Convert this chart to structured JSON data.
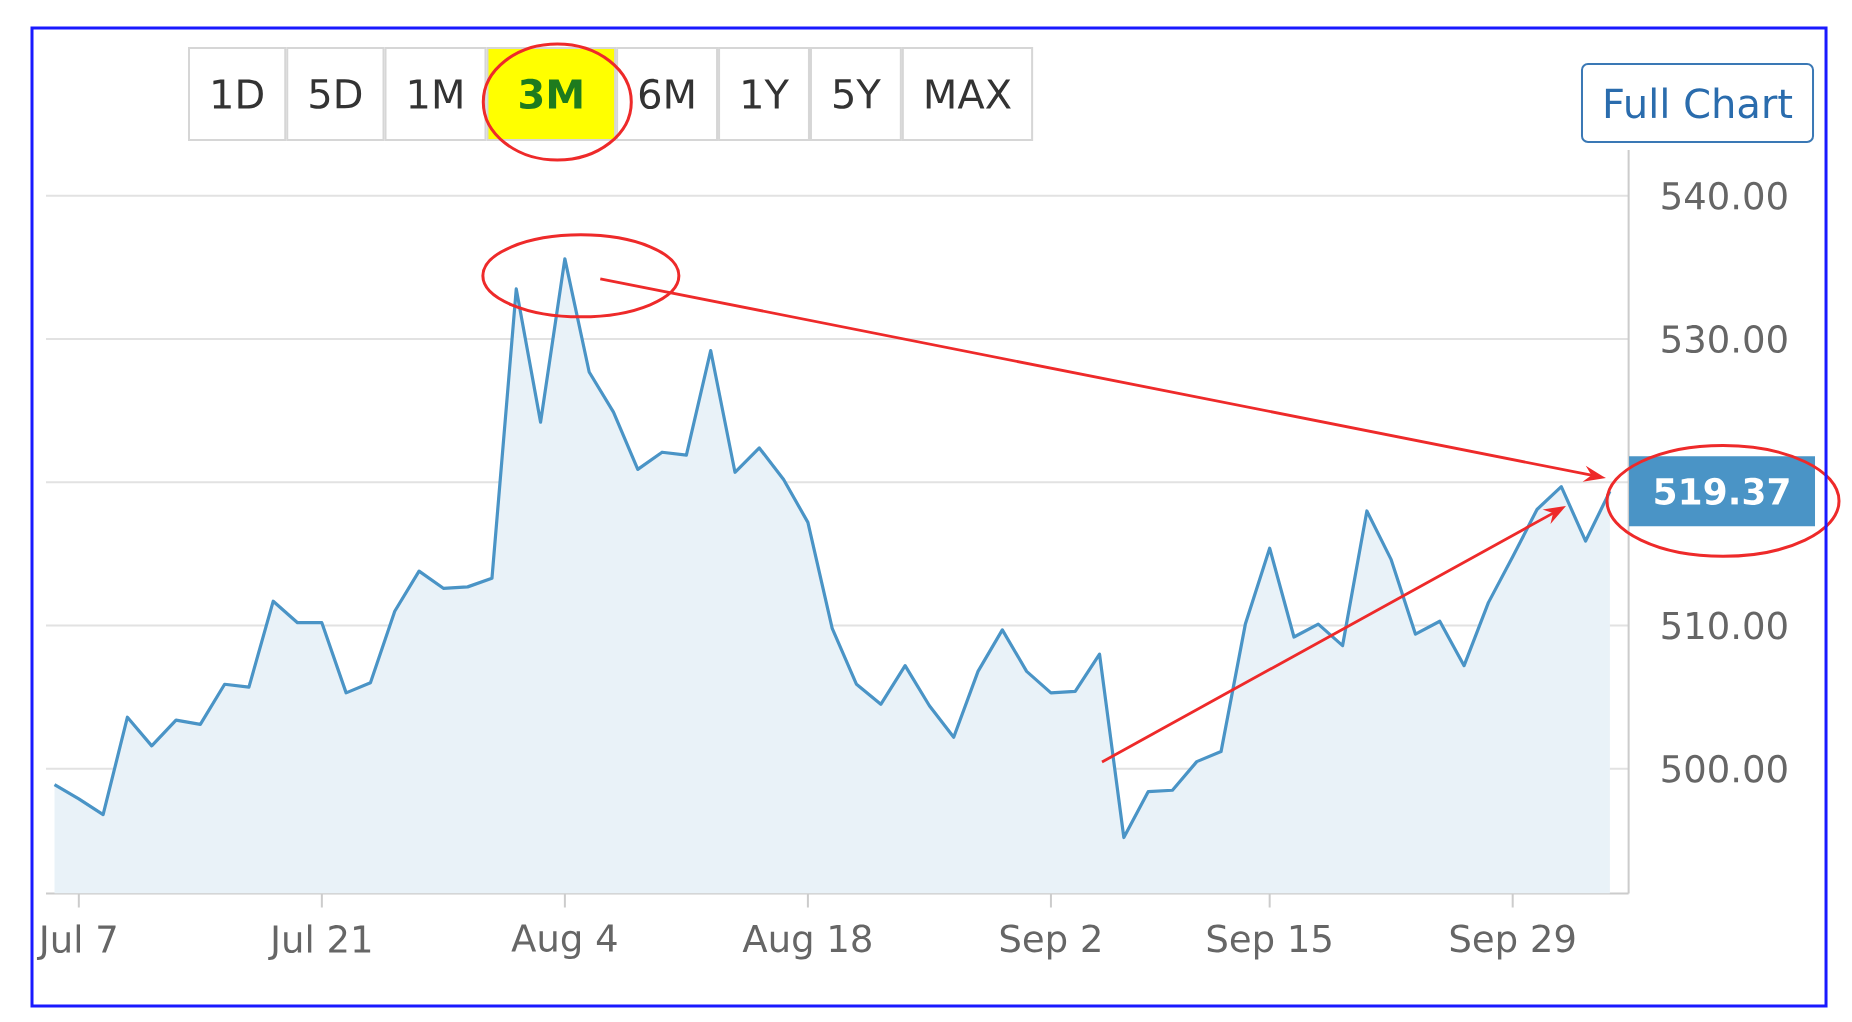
{
  "chart_data": {
    "type": "area",
    "categories": [
      null,
      "Jul 7",
      null,
      null,
      null,
      null,
      null,
      null,
      null,
      null,
      null,
      "Jul 21",
      null,
      null,
      null,
      null,
      null,
      null,
      null,
      null,
      null,
      "Aug 4",
      null,
      null,
      null,
      null,
      null,
      null,
      null,
      null,
      null,
      "Aug 18",
      null,
      null,
      null,
      null,
      null,
      null,
      null,
      null,
      null,
      "Sep 2",
      null,
      null,
      null,
      null,
      null,
      null,
      null,
      null,
      "Sep 15",
      null,
      null,
      null,
      null,
      null,
      null,
      null,
      null,
      null,
      "Sep 29",
      null,
      null,
      null,
      null
    ],
    "values": [
      498.9,
      497.9,
      496.8,
      503.6,
      501.6,
      503.4,
      503.1,
      505.9,
      505.7,
      511.7,
      510.2,
      510.2,
      505.3,
      506.0,
      511.0,
      513.8,
      512.6,
      512.7,
      513.3,
      533.5,
      524.2,
      535.6,
      527.7,
      524.9,
      520.9,
      522.1,
      521.9,
      529.2,
      520.7,
      522.4,
      520.2,
      517.2,
      509.8,
      505.9,
      504.5,
      507.2,
      504.4,
      502.2,
      506.8,
      509.7,
      506.8,
      505.3,
      505.4,
      508.0,
      495.2,
      498.4,
      498.5,
      500.5,
      501.2,
      510.1,
      515.4,
      509.2,
      510.1,
      508.6,
      518.0,
      514.6,
      509.4,
      510.3,
      507.2,
      511.6,
      514.8,
      518.1,
      519.7,
      515.9,
      519.37
    ],
    "color": "#4a94c6",
    "ylim": [
      491.3,
      543.2
    ],
    "yticks": [
      {
        "value": 500,
        "label": "500.00"
      },
      {
        "value": 510,
        "label": "510.00"
      },
      {
        "value": 520,
        "label": null
      },
      {
        "value": 530,
        "label": "530.00"
      },
      {
        "value": 540,
        "label": "540.00"
      }
    ],
    "grid": "y",
    "annotations": [
      "1D",
      "5D",
      "1M",
      "3M",
      "6M",
      "1Y",
      "5Y",
      "MAX",
      "Full Chart",
      "519.37"
    ]
  }
}
